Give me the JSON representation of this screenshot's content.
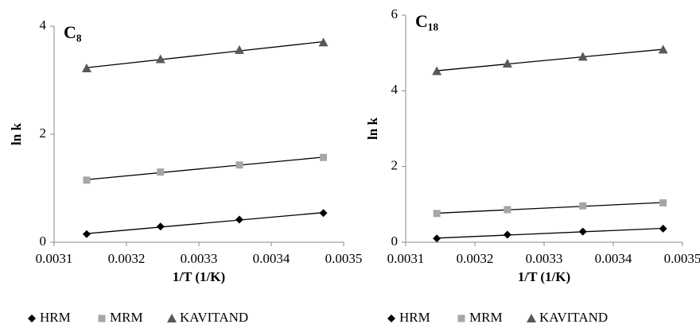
{
  "chart_data": [
    {
      "type": "scatter",
      "title": "C₈",
      "xlabel": "1/T (1/K)",
      "ylabel": "ln k",
      "x": [
        0.003145,
        0.003247,
        0.003356,
        0.003472
      ],
      "xlim": [
        0.0031,
        0.0035
      ],
      "xticks": [
        0.0031,
        0.0032,
        0.0033,
        0.0034,
        0.0035
      ],
      "ylim": [
        0,
        4
      ],
      "yticks": [
        0,
        2,
        4
      ],
      "trendline": true,
      "series": [
        {
          "name": "HRM",
          "color": "#000000",
          "marker": "diamond",
          "values": [
            0.15,
            0.29,
            0.42,
            0.54
          ]
        },
        {
          "name": "MRM",
          "color": "#a6a6a6",
          "marker": "square",
          "values": [
            1.15,
            1.3,
            1.43,
            1.57
          ]
        },
        {
          "name": "KAVITAND",
          "color": "#595959",
          "marker": "triangle",
          "values": [
            3.22,
            3.39,
            3.56,
            3.7
          ]
        }
      ]
    },
    {
      "type": "scatter",
      "title": "C₁₈",
      "xlabel": "1/T (1/K)",
      "ylabel": "ln k",
      "x": [
        0.003145,
        0.003247,
        0.003356,
        0.003472
      ],
      "xlim": [
        0.0031,
        0.0035
      ],
      "xticks": [
        0.0031,
        0.0032,
        0.0033,
        0.0034,
        0.0035
      ],
      "ylim": [
        0,
        6
      ],
      "yticks": [
        0,
        2,
        4,
        6
      ],
      "trendline": true,
      "series": [
        {
          "name": "HRM",
          "color": "#000000",
          "marker": "diamond",
          "values": [
            0.1,
            0.2,
            0.28,
            0.36
          ]
        },
        {
          "name": "MRM",
          "color": "#a6a6a6",
          "marker": "square",
          "values": [
            0.76,
            0.86,
            0.96,
            1.04
          ]
        },
        {
          "name": "KAVITAND",
          "color": "#595959",
          "marker": "triangle",
          "values": [
            4.52,
            4.72,
            4.9,
            5.09
          ]
        }
      ]
    }
  ]
}
